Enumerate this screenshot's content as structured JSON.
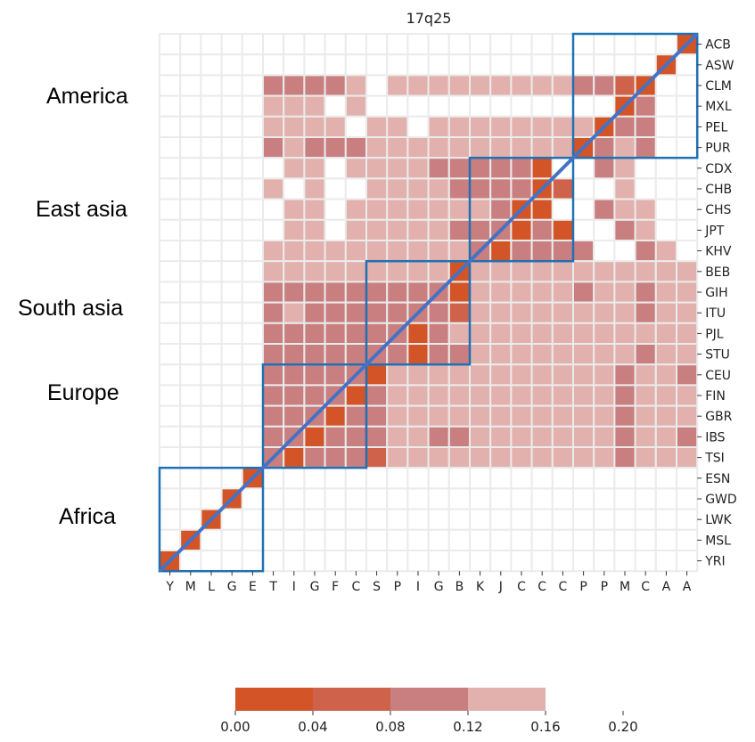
{
  "chart_data": {
    "type": "heatmap",
    "title": "17q25",
    "row_labels": [
      "ACB",
      "ASW",
      "CLM",
      "MXL",
      "PEL",
      "PUR",
      "CDX",
      "CHB",
      "CHS",
      "JPT",
      "KHV",
      "BEB",
      "GIH",
      "ITU",
      "PJL",
      "STU",
      "CEU",
      "FIN",
      "GBR",
      "IBS",
      "TSI",
      "ESN",
      "GWD",
      "LWK",
      "MSL",
      "YRI"
    ],
    "col_labels": [
      "Y",
      "M",
      "L",
      "G",
      "E",
      "T",
      "I",
      "G",
      "F",
      "C",
      "S",
      "P",
      "I",
      "G",
      "B",
      "K",
      "J",
      "C",
      "C",
      "C",
      "P",
      "P",
      "M",
      "C",
      "A",
      "A"
    ],
    "colorbar": {
      "ticks": [
        "0.00",
        "0.04",
        "0.08",
        "0.12",
        "0.16",
        "0.20"
      ],
      "bins": [
        {
          "from": 0.0,
          "to": 0.04,
          "color": "#d35426"
        },
        {
          "from": 0.04,
          "to": 0.08,
          "color": "#cf624a"
        },
        {
          "from": 0.08,
          "to": 0.12,
          "color": "#c97f80"
        },
        {
          "from": 0.12,
          "to": 0.16,
          "color": "#e2b1ad"
        }
      ]
    },
    "matrix_bins": [
      "-------------------------0",
      "------------------------0-",
      "-----22223-3333333332210--",
      "-----333-3------------02--",
      "-----3333-33-33333333022--",
      "-----2322233333333330232--",
      "------33-3333222220--23---",
      "-----3-3--3333222201--3---",
      "------33-3333333200--233--",
      "------33-33333222020--23--",
      "-----3333333333202222--23-",
      "-----333333333033333333333",
      "-----222222222033333233233",
      "-----232222222133333333233",
      "-----2222222023333333333333",
      "-----222222202233333333233",
      "-----222220333333333332332",
      "-----222202333333333332333",
      "-----222022333333333332333",
      "-----220222332233333332332",
      "-----202221333333333332333",
      "----0---------------------",
      "---0----------------------",
      "--0-----------------------",
      "-0------------------------",
      "0-------------------------"
    ],
    "groups": [
      {
        "name": "America",
        "rows": [
          "ACB",
          "PUR"
        ],
        "cols": [
          "P",
          "A"
        ]
      },
      {
        "name": "East asia",
        "rows": [
          "CDX",
          "KHV"
        ],
        "cols": [
          "K",
          "C"
        ]
      },
      {
        "name": "South asia",
        "rows": [
          "BEB",
          "STU"
        ],
        "cols": [
          "S",
          "B"
        ]
      },
      {
        "name": "Europe",
        "rows": [
          "CEU",
          "TSI"
        ],
        "cols": [
          "T",
          "C"
        ]
      },
      {
        "name": "Africa",
        "rows": [
          "ESN",
          "YRI"
        ],
        "cols": [
          "Y",
          "E"
        ]
      }
    ],
    "diagonal_line": true,
    "legend_placement": "bottom-center"
  }
}
